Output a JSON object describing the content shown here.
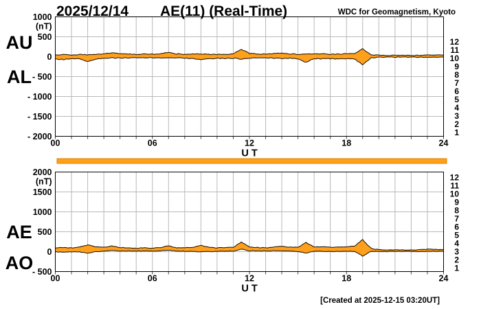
{
  "header": {
    "date": "2025/12/14",
    "title": "AE(11) (Real-Time)",
    "source": "WDC for Geomagnetism, Kyoto"
  },
  "footer": {
    "created": "[Created at 2025-12-15 03:20UT]"
  },
  "station_scale": {
    "labels": [
      "12",
      "11",
      "10",
      "9",
      "8",
      "7",
      "6",
      "5",
      "4",
      "3",
      "2",
      "1"
    ],
    "colors": [
      "#e6245f",
      "#ff3000",
      "#ff9800",
      "#ffe400",
      "#8cf432",
      "#00dcdc",
      "#2e6bff",
      "#7a30ff",
      "#ff00ff",
      "#000000",
      "#8c8c8c",
      "#c8c8c8"
    ]
  },
  "availability_bar": {
    "fill": "#ffa018",
    "border": "#d98200"
  },
  "style": {
    "band_fill": "#ffa01c",
    "band_stroke": "#150b00",
    "grid": "#b8b8b8",
    "axis": "#000000",
    "minor_tick": "#444444"
  },
  "chart_data": [
    {
      "type": "area",
      "name": "AU-AL",
      "unit": "(nT)",
      "xlabel": "U T",
      "left_labels": [
        "AU",
        "AL"
      ],
      "ylim": [
        -2000,
        1000
      ],
      "yticks": [
        {
          "v": 1000,
          "label": "1000"
        },
        {
          "v": 500,
          "label": "500"
        },
        {
          "v": 0,
          "label": "0"
        },
        {
          "v": -500,
          "label": "- 500"
        },
        {
          "v": -1000,
          "label": "- 1000"
        },
        {
          "v": -1500,
          "label": "- 1500"
        },
        {
          "v": -2000,
          "label": "- 2000"
        }
      ],
      "xticks": [
        {
          "h": 0,
          "label": "00"
        },
        {
          "h": 6,
          "label": "06"
        },
        {
          "h": 12,
          "label": "12"
        },
        {
          "h": 18,
          "label": "18"
        },
        {
          "h": 24,
          "label": "24"
        }
      ],
      "x_start_h": 0,
      "x_step_h": 0.5,
      "noise_nT": 13,
      "series": [
        {
          "name": "AU",
          "values": [
            45,
            50,
            40,
            55,
            45,
            60,
            70,
            100,
            70,
            65,
            60,
            65,
            60,
            70,
            110,
            70,
            60,
            65,
            70,
            60,
            55,
            60,
            70,
            180,
            80,
            70,
            65,
            80,
            90,
            70,
            60,
            70,
            65,
            70,
            60,
            65,
            70,
            80,
            200,
            50,
            35,
            30,
            30,
            35,
            30,
            35,
            45,
            40,
            40
          ]
        },
        {
          "name": "AL",
          "values": [
            -60,
            -70,
            -50,
            -60,
            -120,
            -60,
            -40,
            -30,
            -35,
            -30,
            -25,
            -30,
            -25,
            -30,
            -35,
            -30,
            -40,
            -45,
            -80,
            -50,
            -40,
            -45,
            -40,
            -60,
            -40,
            -35,
            -30,
            -40,
            -45,
            -40,
            -50,
            -140,
            -50,
            -55,
            -50,
            -55,
            -50,
            -60,
            -200,
            -40,
            -15,
            -10,
            -10,
            -12,
            -10,
            -12,
            -20,
            -15,
            -15
          ]
        }
      ]
    },
    {
      "type": "area",
      "name": "AE-AO",
      "unit": "(nT)",
      "xlabel": "U T",
      "left_labels": [
        "AE",
        "AO"
      ],
      "ylim": [
        -500,
        2000
      ],
      "yticks": [
        {
          "v": 2000,
          "label": "2000"
        },
        {
          "v": 1500,
          "label": "1500"
        },
        {
          "v": 1000,
          "label": "1000"
        },
        {
          "v": 500,
          "label": "500"
        },
        {
          "v": 0,
          "label": "0"
        },
        {
          "v": -500,
          "label": "- 500"
        }
      ],
      "xticks": [
        {
          "h": 0,
          "label": "00"
        },
        {
          "h": 6,
          "label": "06"
        },
        {
          "h": 12,
          "label": "12"
        },
        {
          "h": 18,
          "label": "18"
        },
        {
          "h": 24,
          "label": "24"
        }
      ],
      "x_start_h": 0,
      "x_step_h": 0.5,
      "noise_nT": 10,
      "series": [
        {
          "name": "AE",
          "values": [
            100,
            110,
            90,
            115,
            170,
            120,
            110,
            140,
            105,
            95,
            85,
            95,
            85,
            100,
            150,
            100,
            100,
            110,
            160,
            110,
            95,
            105,
            110,
            240,
            120,
            105,
            95,
            120,
            140,
            110,
            110,
            230,
            115,
            125,
            110,
            120,
            120,
            140,
            300,
            90,
            50,
            40,
            40,
            47,
            40,
            47,
            65,
            55,
            55
          ]
        },
        {
          "name": "AO",
          "values": [
            -8,
            -10,
            -5,
            -3,
            -38,
            0,
            15,
            35,
            18,
            18,
            18,
            18,
            18,
            20,
            38,
            20,
            10,
            10,
            -5,
            5,
            8,
            8,
            15,
            60,
            20,
            18,
            18,
            20,
            23,
            15,
            5,
            -35,
            8,
            8,
            5,
            5,
            10,
            10,
            -110,
            5,
            5,
            5,
            5,
            5,
            5,
            5,
            10,
            8,
            8
          ]
        }
      ]
    }
  ]
}
